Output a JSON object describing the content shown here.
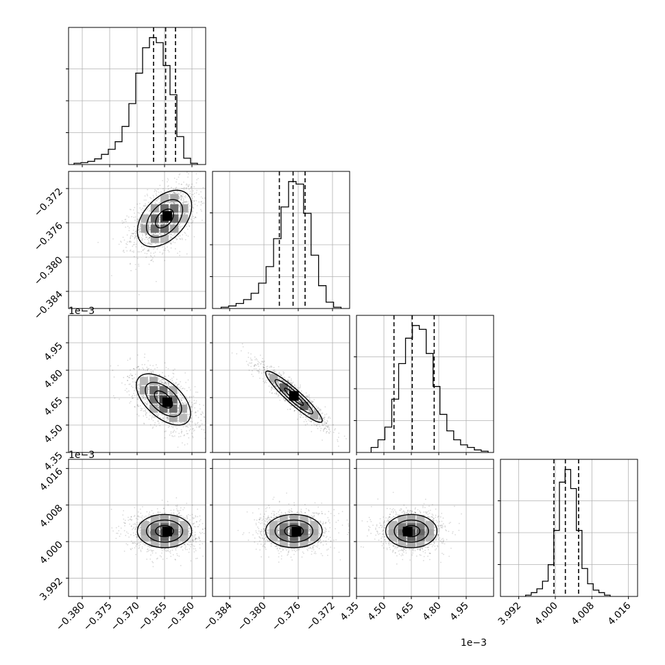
{
  "chart_data": {
    "type": "corner",
    "title": "",
    "parameters": [
      {
        "range": [
          -0.3825,
          -0.3575
        ],
        "ticks": [
          -0.38,
          -0.375,
          -0.37,
          -0.365,
          -0.36
        ],
        "tick_labels": [
          "−0.380",
          "−0.375",
          "−0.370",
          "−0.365",
          "−0.360"
        ],
        "offset_label": "",
        "quantiles": [
          -0.367,
          -0.3648,
          -0.363
        ],
        "histogram": [
          0.01,
          0.015,
          0.025,
          0.045,
          0.08,
          0.12,
          0.18,
          0.3,
          0.48,
          0.72,
          0.92,
          1.0,
          0.96,
          0.78,
          0.55,
          0.22,
          0.05,
          0.01
        ],
        "hist_range": [
          -0.3815,
          -0.359
        ]
      },
      {
        "range": [
          -0.386,
          -0.37
        ],
        "ticks": [
          -0.384,
          -0.38,
          -0.376,
          -0.372
        ],
        "tick_labels": [
          "−0.384",
          "−0.380",
          "−0.376",
          "−0.372"
        ],
        "offset_label": "",
        "quantiles": [
          -0.3782,
          -0.3766,
          -0.3752
        ],
        "histogram": [
          0.01,
          0.02,
          0.04,
          0.07,
          0.12,
          0.2,
          0.33,
          0.55,
          0.8,
          1.0,
          0.98,
          0.75,
          0.42,
          0.18,
          0.05,
          0.01
        ],
        "hist_range": [
          -0.385,
          -0.371
        ]
      },
      {
        "range": [
          4.35,
          5.1
        ],
        "ticks": [
          4.35,
          4.5,
          4.65,
          4.8,
          4.95
        ],
        "tick_labels": [
          "4.35",
          "4.50",
          "4.65",
          "4.80",
          "4.95"
        ],
        "offset_label": "1e−3",
        "quantiles": [
          4.555,
          4.655,
          4.775
        ],
        "histogram": [
          0.04,
          0.1,
          0.2,
          0.42,
          0.7,
          0.9,
          1.0,
          0.97,
          0.78,
          0.52,
          0.3,
          0.17,
          0.1,
          0.06,
          0.04,
          0.02,
          0.01
        ],
        "hist_range": [
          4.43,
          5.07
        ]
      },
      {
        "range": [
          3.988,
          4.018
        ],
        "ticks": [
          3.992,
          4.0,
          4.008,
          4.016
        ],
        "tick_labels": [
          "3.992",
          "4.000",
          "4.008",
          "4.016"
        ],
        "offset_label": "1e−3",
        "quantiles": [
          3.9997,
          4.0022,
          4.0051
        ],
        "histogram": [
          0.01,
          0.03,
          0.06,
          0.12,
          0.25,
          0.52,
          0.9,
          1.0,
          0.85,
          0.52,
          0.22,
          0.1,
          0.05,
          0.03,
          0.01
        ],
        "hist_range": [
          3.9935,
          4.012
        ]
      }
    ],
    "pairs": [
      {
        "row": 1,
        "col": 0,
        "mean": [
          -0.365,
          -0.3755
        ],
        "sd": [
          0.003,
          0.002
        ],
        "corr": 0.45,
        "peak": [
          -0.3645,
          -0.3752
        ]
      },
      {
        "row": 2,
        "col": 0,
        "mean": [
          -0.3652,
          4.64
        ],
        "sd": [
          0.003,
          0.085
        ],
        "corr": -0.55,
        "peak": [
          -0.3645,
          4.625
        ]
      },
      {
        "row": 2,
        "col": 1,
        "mean": [
          -0.3765,
          4.655
        ],
        "sd": [
          0.002,
          0.085
        ],
        "corr": -0.93,
        "peak": [
          -0.3765,
          4.66
        ]
      },
      {
        "row": 3,
        "col": 0,
        "mean": [
          -0.365,
          4.0023
        ],
        "sd": [
          0.003,
          0.0022
        ],
        "corr": 0.0,
        "peak": [
          -0.3645,
          4.0022
        ]
      },
      {
        "row": 3,
        "col": 1,
        "mean": [
          -0.3765,
          4.0023
        ],
        "sd": [
          0.002,
          0.0022
        ],
        "corr": 0.0,
        "peak": [
          -0.3762,
          4.0022
        ]
      },
      {
        "row": 3,
        "col": 2,
        "mean": [
          4.65,
          4.0023
        ],
        "sd": [
          0.085,
          0.0022
        ],
        "corr": 0.0,
        "peak": [
          4.63,
          4.0022
        ]
      }
    ],
    "grid": true,
    "colors": {
      "line": "#000000",
      "grid": "#b0b0b0",
      "scatter": "#000000"
    }
  }
}
